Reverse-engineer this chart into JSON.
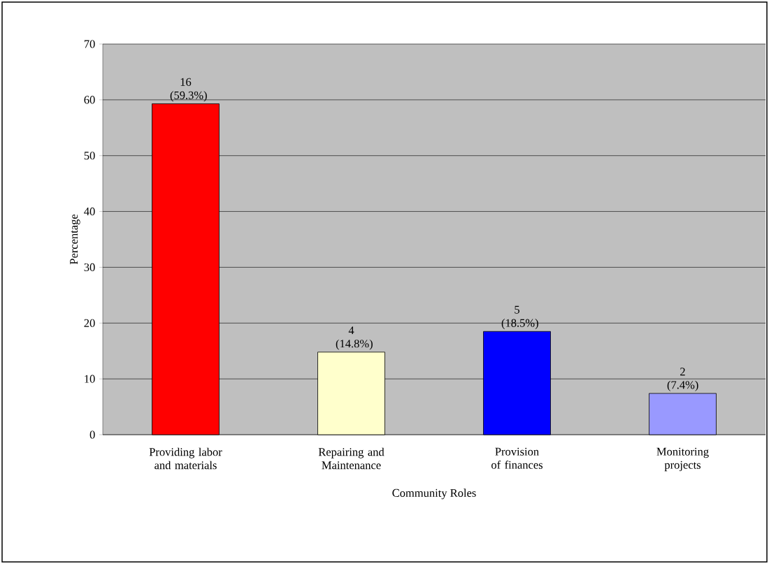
{
  "chart_data": {
    "type": "bar",
    "xlabel": "Community Roles",
    "ylabel": "Percentage",
    "categories": [
      "Providing labor and materials",
      "Repairing and Maintenance",
      "Provision of finances",
      "Monitoring projects"
    ],
    "values": [
      59.3,
      14.8,
      18.5,
      7.4
    ],
    "colors": [
      "#ff0000",
      "#ffffcc",
      "#0000ff",
      "#9999ff"
    ],
    "value_labels": [
      "16 (59.3%)",
      "4 (14.8%)",
      "5 (18.5%)",
      "2 (7.4%)"
    ],
    "ylim": [
      0,
      70
    ],
    "yticks": [
      0,
      10,
      20,
      30,
      40,
      50,
      60,
      70
    ],
    "grid": "y",
    "legend": false
  }
}
